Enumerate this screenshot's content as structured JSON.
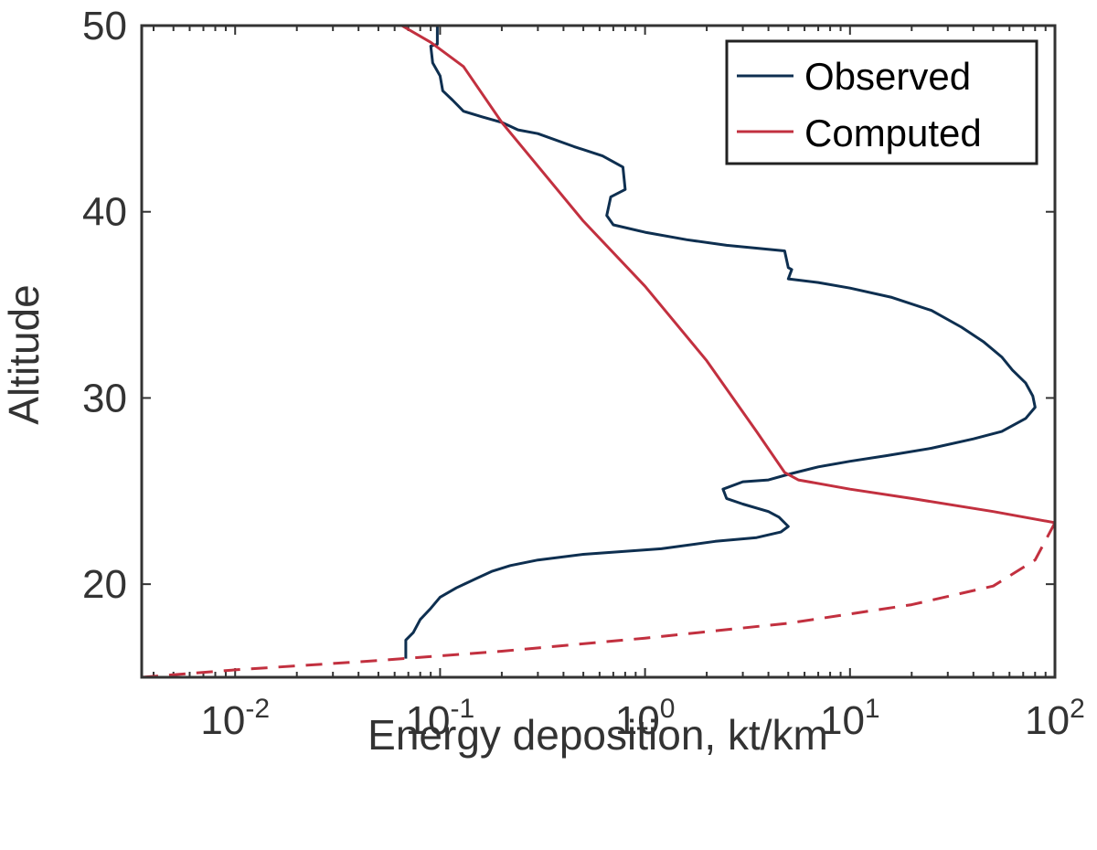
{
  "chart_data": {
    "type": "line",
    "title": "",
    "xlabel": "Energy deposition, kt/km",
    "ylabel": "Altitude",
    "xscale": "log",
    "xlim": [
      0.0035,
      100
    ],
    "ylim": [
      15,
      50
    ],
    "x_ticks": [
      {
        "value": 0.01,
        "base": "10",
        "exp": "-2"
      },
      {
        "value": 0.1,
        "base": "10",
        "exp": "-1"
      },
      {
        "value": 1,
        "base": "10",
        "exp": "0"
      },
      {
        "value": 10,
        "base": "10",
        "exp": "1"
      },
      {
        "value": 100,
        "base": "10",
        "exp": "2"
      }
    ],
    "y_ticks": [
      20,
      30,
      40,
      50
    ],
    "legend": {
      "position": "top-right"
    },
    "colors": {
      "observed": "#0e2f50",
      "computed": "#c2303f",
      "axis": "#333333"
    },
    "series": [
      {
        "name": "Observed",
        "style": "solid",
        "points": [
          [
            0.097,
            50
          ],
          [
            0.097,
            49.0
          ],
          [
            0.09,
            48.9
          ],
          [
            0.092,
            48.0
          ],
          [
            0.1,
            47.3
          ],
          [
            0.103,
            46.5
          ],
          [
            0.115,
            46.0
          ],
          [
            0.13,
            45.4
          ],
          [
            0.16,
            45.1
          ],
          [
            0.2,
            44.8
          ],
          [
            0.24,
            44.4
          ],
          [
            0.3,
            44.2
          ],
          [
            0.45,
            43.5
          ],
          [
            0.62,
            43.0
          ],
          [
            0.78,
            42.4
          ],
          [
            0.8,
            41.2
          ],
          [
            0.68,
            40.8
          ],
          [
            0.65,
            39.8
          ],
          [
            0.7,
            39.3
          ],
          [
            1.0,
            38.9
          ],
          [
            1.6,
            38.5
          ],
          [
            2.5,
            38.2
          ],
          [
            4.8,
            37.9
          ],
          [
            5.0,
            37.0
          ],
          [
            5.2,
            36.9
          ],
          [
            5.0,
            36.4
          ],
          [
            7.0,
            36.2
          ],
          [
            10.0,
            35.9
          ],
          [
            16.0,
            35.4
          ],
          [
            25.0,
            34.7
          ],
          [
            35.0,
            33.8
          ],
          [
            45.0,
            33.0
          ],
          [
            55.0,
            32.2
          ],
          [
            62.0,
            31.5
          ],
          [
            72.0,
            30.8
          ],
          [
            78.0,
            30.1
          ],
          [
            80.0,
            29.5
          ],
          [
            72.0,
            28.9
          ],
          [
            55.0,
            28.2
          ],
          [
            40.0,
            27.8
          ],
          [
            25.0,
            27.3
          ],
          [
            15.0,
            26.9
          ],
          [
            10.0,
            26.6
          ],
          [
            7.0,
            26.3
          ],
          [
            5.0,
            25.9
          ],
          [
            4.0,
            25.6
          ],
          [
            3.0,
            25.5
          ],
          [
            2.4,
            25.1
          ],
          [
            2.5,
            24.6
          ],
          [
            3.0,
            24.3
          ],
          [
            4.0,
            23.9
          ],
          [
            4.5,
            23.6
          ],
          [
            5.0,
            23.1
          ],
          [
            4.6,
            22.8
          ],
          [
            3.5,
            22.5
          ],
          [
            2.2,
            22.3
          ],
          [
            1.2,
            21.9
          ],
          [
            0.5,
            21.6
          ],
          [
            0.3,
            21.3
          ],
          [
            0.22,
            21.0
          ],
          [
            0.18,
            20.7
          ],
          [
            0.15,
            20.3
          ],
          [
            0.12,
            19.8
          ],
          [
            0.1,
            19.3
          ],
          [
            0.09,
            18.7
          ],
          [
            0.08,
            18.1
          ],
          [
            0.074,
            17.4
          ],
          [
            0.068,
            17.0
          ],
          [
            0.068,
            16.0
          ]
        ]
      },
      {
        "name": "Computed",
        "style": "solid",
        "points": [
          [
            0.065,
            50
          ],
          [
            0.09,
            49.1
          ],
          [
            0.13,
            47.8
          ],
          [
            0.2,
            44.8
          ],
          [
            0.5,
            39.5
          ],
          [
            1.0,
            36.0
          ],
          [
            2.0,
            32.0
          ],
          [
            3.5,
            28.2
          ],
          [
            4.8,
            26.0
          ],
          [
            5.6,
            25.6
          ],
          [
            10.0,
            25.1
          ],
          [
            20.0,
            24.6
          ],
          [
            50.0,
            23.9
          ],
          [
            100.0,
            23.3
          ]
        ]
      },
      {
        "name": "Computed (extension)",
        "style": "dashed",
        "legend": false,
        "points": [
          [
            100.0,
            23.3
          ],
          [
            80.0,
            21.3
          ],
          [
            50.0,
            19.9
          ],
          [
            20.0,
            18.9
          ],
          [
            5.0,
            17.9
          ],
          [
            1.0,
            17.1
          ],
          [
            0.2,
            16.4
          ],
          [
            0.05,
            15.9
          ],
          [
            0.01,
            15.4
          ],
          [
            0.0035,
            15.0
          ]
        ]
      }
    ]
  }
}
